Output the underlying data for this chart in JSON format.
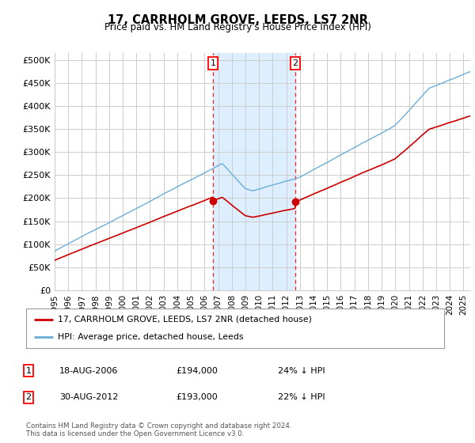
{
  "title": "17, CARRHOLM GROVE, LEEDS, LS7 2NR",
  "subtitle": "Price paid vs. HM Land Registry's House Price Index (HPI)",
  "ylabel_ticks": [
    "£0",
    "£50K",
    "£100K",
    "£150K",
    "£200K",
    "£250K",
    "£300K",
    "£350K",
    "£400K",
    "£450K",
    "£500K"
  ],
  "ytick_values": [
    0,
    50000,
    100000,
    150000,
    200000,
    250000,
    300000,
    350000,
    400000,
    450000,
    500000
  ],
  "ylim": [
    0,
    515000
  ],
  "xlim_start": 1995.0,
  "xlim_end": 2025.5,
  "hpi_color": "#6aaed6",
  "price_color": "#cc0000",
  "purchase1_date": 2006.63,
  "purchase1_price": 194000,
  "purchase2_date": 2012.66,
  "purchase2_price": 193000,
  "annotation1_label": "18-AUG-2006",
  "annotation1_price": "£194,000",
  "annotation1_note": "24% ↓ HPI",
  "annotation2_label": "30-AUG-2012",
  "annotation2_price": "£193,000",
  "annotation2_note": "22% ↓ HPI",
  "legend_house_label": "17, CARRHOLM GROVE, LEEDS, LS7 2NR (detached house)",
  "legend_hpi_label": "HPI: Average price, detached house, Leeds",
  "footnote": "Contains HM Land Registry data © Crown copyright and database right 2024.\nThis data is licensed under the Open Government Licence v3.0.",
  "background_color": "#ffffff",
  "plot_bg_color": "#ffffff",
  "grid_color": "#cccccc",
  "shaded_region_color": "#ddeeff",
  "xtick_years": [
    1995,
    1996,
    1997,
    1998,
    1999,
    2000,
    2001,
    2002,
    2003,
    2004,
    2005,
    2006,
    2007,
    2008,
    2009,
    2010,
    2011,
    2012,
    2013,
    2014,
    2015,
    2016,
    2017,
    2018,
    2019,
    2020,
    2021,
    2022,
    2023,
    2024,
    2025
  ]
}
